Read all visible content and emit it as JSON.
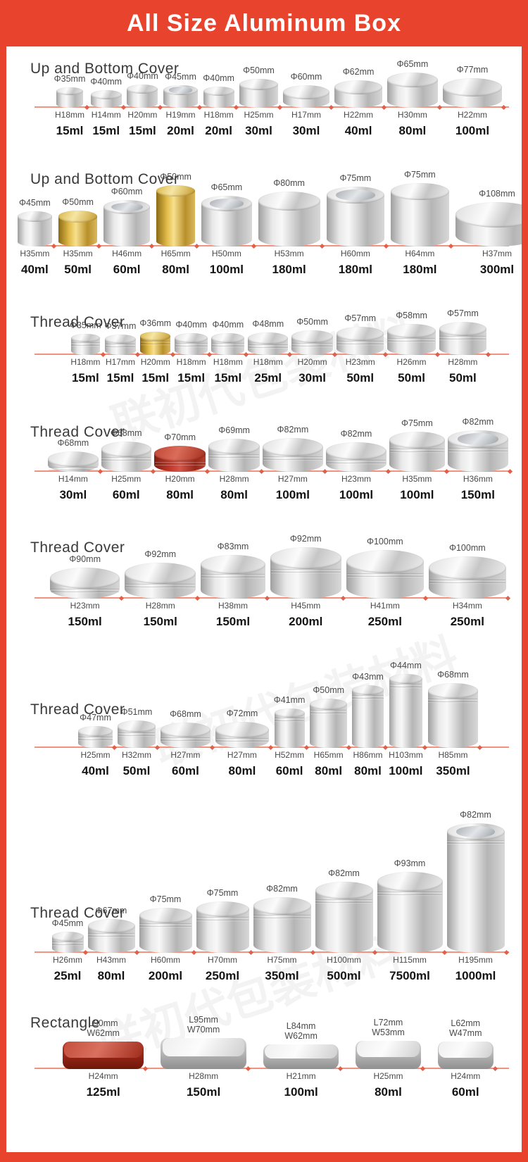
{
  "page": {
    "title": "All Size Aluminum Box",
    "accent_color": "#e8432d",
    "baseline_color": "#f2937f",
    "watermark": "联初代包装材料"
  },
  "sections": [
    {
      "title": "Up and Bottom Cover",
      "items": [
        {
          "dia": "Φ35mm",
          "h": "H18mm",
          "vol": "15ml",
          "style": "silver",
          "lid": "flat"
        },
        {
          "dia": "Φ40mm",
          "h": "H14mm",
          "vol": "15ml",
          "style": "silver",
          "lid": "flat"
        },
        {
          "dia": "Φ40mm",
          "h": "H20mm",
          "vol": "15ml",
          "style": "silver",
          "lid": "flat"
        },
        {
          "dia": "Φ45mm",
          "h": "H19mm",
          "vol": "20ml",
          "style": "silver",
          "lid": "window"
        },
        {
          "dia": "Φ40mm",
          "h": "H18mm",
          "vol": "20ml",
          "style": "silver",
          "lid": "flat"
        },
        {
          "dia": "Φ50mm",
          "h": "H25mm",
          "vol": "30ml",
          "style": "silver",
          "lid": "flat"
        },
        {
          "dia": "Φ60mm",
          "h": "H17mm",
          "vol": "30ml",
          "style": "silver",
          "lid": "flat"
        },
        {
          "dia": "Φ62mm",
          "h": "H22mm",
          "vol": "40ml",
          "style": "silver",
          "lid": "flat"
        },
        {
          "dia": "Φ65mm",
          "h": "H30mm",
          "vol": "80ml",
          "style": "silver",
          "lid": "flat"
        },
        {
          "dia": "Φ77mm",
          "h": "H22mm",
          "vol": "100ml",
          "style": "silver",
          "lid": "flat"
        }
      ]
    },
    {
      "title": "Up and Bottom Cover",
      "items": [
        {
          "dia": "Φ45mm",
          "h": "H35mm",
          "vol": "40ml",
          "style": "silver",
          "lid": "flat"
        },
        {
          "dia": "Φ50mm",
          "h": "H35mm",
          "vol": "50ml",
          "style": "gold",
          "lid": "flat"
        },
        {
          "dia": "Φ60mm",
          "h": "H46mm",
          "vol": "60ml",
          "style": "silver",
          "lid": "window"
        },
        {
          "dia": "Φ50mm",
          "h": "H65mm",
          "vol": "80ml",
          "style": "gold",
          "lid": "flat"
        },
        {
          "dia": "Φ65mm",
          "h": "H50mm",
          "vol": "100ml",
          "style": "silver",
          "lid": "window"
        },
        {
          "dia": "Φ80mm",
          "h": "H53mm",
          "vol": "180ml",
          "style": "silver",
          "lid": "flat"
        },
        {
          "dia": "Φ75mm",
          "h": "H60mm",
          "vol": "180ml",
          "style": "silver",
          "lid": "window"
        },
        {
          "dia": "Φ75mm",
          "h": "H64mm",
          "vol": "180ml",
          "style": "silver",
          "lid": "flat"
        },
        {
          "dia": "Φ108mm",
          "h": "H37mm",
          "vol": "300ml",
          "style": "silver",
          "lid": "flat"
        }
      ]
    },
    {
      "title": "Thread Cover",
      "items": [
        {
          "dia": "Φ35mm",
          "h": "H18mm",
          "vol": "15ml",
          "style": "silver",
          "lid": "flat"
        },
        {
          "dia": "Φ37mm",
          "h": "H17mm",
          "vol": "15ml",
          "style": "silver",
          "lid": "flat"
        },
        {
          "dia": "Φ36mm",
          "h": "H20mm",
          "vol": "15ml",
          "style": "gold",
          "lid": "flat"
        },
        {
          "dia": "Φ40mm",
          "h": "H18mm",
          "vol": "15ml",
          "style": "silver",
          "lid": "flat"
        },
        {
          "dia": "Φ40mm",
          "h": "H18mm",
          "vol": "15ml",
          "style": "silver",
          "lid": "flat"
        },
        {
          "dia": "Φ48mm",
          "h": "H18mm",
          "vol": "25ml",
          "style": "silver",
          "lid": "flat"
        },
        {
          "dia": "Φ50mm",
          "h": "H20mm",
          "vol": "30ml",
          "style": "silver",
          "lid": "flat"
        },
        {
          "dia": "Φ57mm",
          "h": "H23mm",
          "vol": "50ml",
          "style": "silver",
          "lid": "flat"
        },
        {
          "dia": "Φ58mm",
          "h": "H26mm",
          "vol": "50ml",
          "style": "silver",
          "lid": "flat"
        },
        {
          "dia": "Φ57mm",
          "h": "H28mm",
          "vol": "50ml",
          "style": "silver",
          "lid": "flat"
        }
      ]
    },
    {
      "title": "Thread Cover",
      "items": [
        {
          "dia": "Φ68mm",
          "h": "H14mm",
          "vol": "30ml",
          "style": "silver",
          "lid": "flat"
        },
        {
          "dia": "Φ68mm",
          "h": "H25mm",
          "vol": "60ml",
          "style": "silver",
          "lid": "flat"
        },
        {
          "dia": "Φ70mm",
          "h": "H20mm",
          "vol": "80ml",
          "style": "red",
          "lid": "flat"
        },
        {
          "dia": "Φ69mm",
          "h": "H28mm",
          "vol": "80ml",
          "style": "silver",
          "lid": "flat"
        },
        {
          "dia": "Φ82mm",
          "h": "H27mm",
          "vol": "100ml",
          "style": "silver",
          "lid": "flat"
        },
        {
          "dia": "Φ82mm",
          "h": "H23mm",
          "vol": "100ml",
          "style": "silver",
          "lid": "flat"
        },
        {
          "dia": "Φ75mm",
          "h": "H35mm",
          "vol": "100ml",
          "style": "silver",
          "lid": "flat"
        },
        {
          "dia": "Φ82mm",
          "h": "H36mm",
          "vol": "150ml",
          "style": "silver",
          "lid": "window"
        }
      ]
    },
    {
      "title": "Thread Cover",
      "items": [
        {
          "dia": "Φ90mm",
          "h": "H23mm",
          "vol": "150ml",
          "style": "silver",
          "lid": "flat"
        },
        {
          "dia": "Φ92mm",
          "h": "H28mm",
          "vol": "150ml",
          "style": "silver",
          "lid": "flat"
        },
        {
          "dia": "Φ83mm",
          "h": "H38mm",
          "vol": "150ml",
          "style": "silver",
          "lid": "flat"
        },
        {
          "dia": "Φ92mm",
          "h": "H45mm",
          "vol": "200ml",
          "style": "silver",
          "lid": "flat"
        },
        {
          "dia": "Φ100mm",
          "h": "H41mm",
          "vol": "250ml",
          "style": "silver",
          "lid": "flat"
        },
        {
          "dia": "Φ100mm",
          "h": "H34mm",
          "vol": "250ml",
          "style": "silver",
          "lid": "flat"
        }
      ]
    },
    {
      "title": "Thread Cover",
      "items": [
        {
          "dia": "Φ47mm",
          "h": "H25mm",
          "vol": "40ml",
          "style": "silver",
          "lid": "flat"
        },
        {
          "dia": "Φ51mm",
          "h": "H32mm",
          "vol": "50ml",
          "style": "silver",
          "lid": "flat"
        },
        {
          "dia": "Φ68mm",
          "h": "H27mm",
          "vol": "60ml",
          "style": "silver",
          "lid": "flat"
        },
        {
          "dia": "Φ72mm",
          "h": "H27mm",
          "vol": "80ml",
          "style": "silver",
          "lid": "flat"
        },
        {
          "dia": "Φ41mm",
          "h": "H52mm",
          "vol": "60ml",
          "style": "silver",
          "lid": "flat"
        },
        {
          "dia": "Φ50mm",
          "h": "H65mm",
          "vol": "80ml",
          "style": "silver",
          "lid": "flat"
        },
        {
          "dia": "Φ43mm",
          "h": "H86mm",
          "vol": "80ml",
          "style": "silver",
          "lid": "flat"
        },
        {
          "dia": "Φ44mm",
          "h": "H103mm",
          "vol": "100ml",
          "style": "silver",
          "lid": "flat"
        },
        {
          "dia": "Φ68mm",
          "h": "H85mm",
          "vol": "350ml",
          "style": "silver",
          "lid": "flat"
        }
      ]
    },
    {
      "title": "Thread Cover",
      "items": [
        {
          "dia": "Φ45mm",
          "h": "H26mm",
          "vol": "25ml",
          "style": "silver",
          "lid": "flat"
        },
        {
          "dia": "Φ67mm",
          "h": "H43mm",
          "vol": "80ml",
          "style": "silver",
          "lid": "flat"
        },
        {
          "dia": "Φ75mm",
          "h": "H60mm",
          "vol": "200ml",
          "style": "silver",
          "lid": "flat"
        },
        {
          "dia": "Φ75mm",
          "h": "H70mm",
          "vol": "250ml",
          "style": "silver",
          "lid": "flat"
        },
        {
          "dia": "Φ82mm",
          "h": "H75mm",
          "vol": "350ml",
          "style": "silver",
          "lid": "flat"
        },
        {
          "dia": "Φ82mm",
          "h": "H100mm",
          "vol": "500ml",
          "style": "silver",
          "lid": "flat"
        },
        {
          "dia": "Φ93mm",
          "h": "H115mm",
          "vol": "7500ml",
          "style": "silver",
          "lid": "flat"
        },
        {
          "dia": "Φ82mm",
          "h": "H195mm",
          "vol": "1000ml",
          "style": "silver",
          "lid": "window"
        }
      ]
    },
    {
      "title": "Rectangle",
      "items": [
        {
          "dims": [
            "L90mm",
            "W62mm"
          ],
          "h": "H24mm",
          "vol": "125ml",
          "style": "red"
        },
        {
          "dims": [
            "L95mm",
            "W70mm"
          ],
          "h": "H28mm",
          "vol": "150ml",
          "style": "silver"
        },
        {
          "dims": [
            "L84mm",
            "W62mm"
          ],
          "h": "H21mm",
          "vol": "100ml",
          "style": "silver"
        },
        {
          "dims": [
            "L72mm",
            "W53mm"
          ],
          "h": "H25mm",
          "vol": "80ml",
          "style": "silver"
        },
        {
          "dims": [
            "L62mm",
            "W47mm"
          ],
          "h": "H24mm",
          "vol": "60ml",
          "style": "silver"
        }
      ]
    }
  ]
}
